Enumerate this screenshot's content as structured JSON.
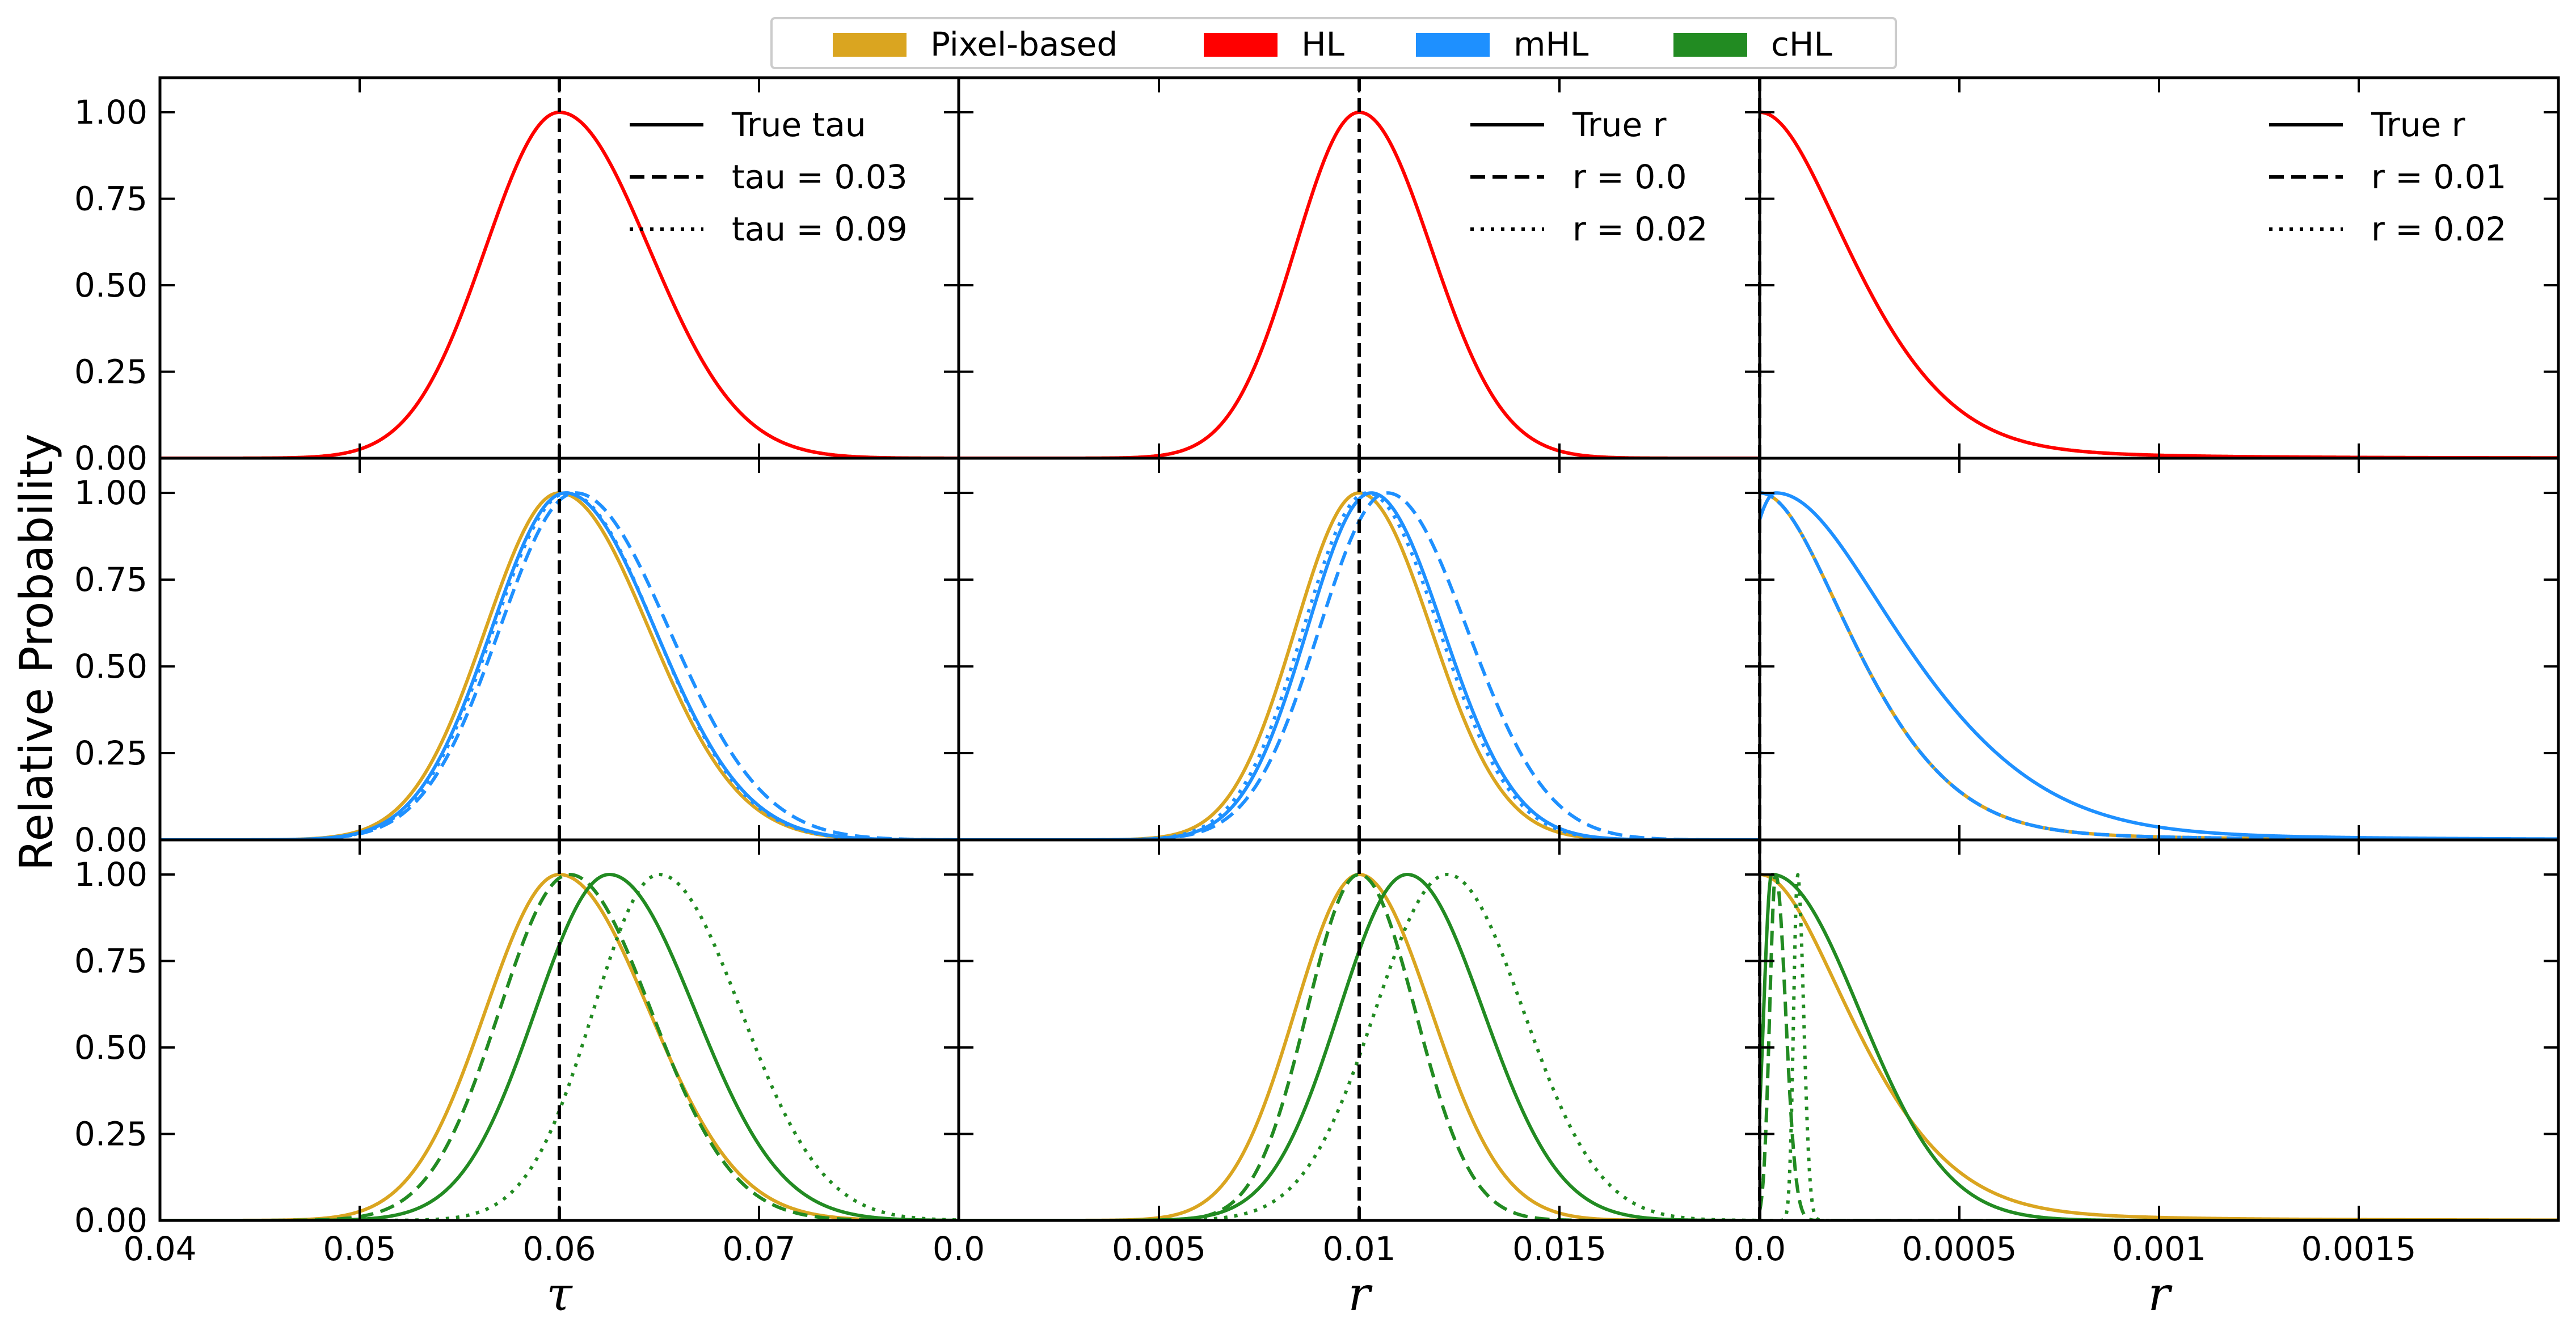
{
  "chart_data": {
    "type": "line",
    "ylabel": "Relative Probability",
    "color_legend": [
      {
        "label": "Pixel-based",
        "color": "#DAA520"
      },
      {
        "label": "HL",
        "color": "#FF0000"
      },
      {
        "label": "mHL",
        "color": "#1E90FF"
      },
      {
        "label": "cHL",
        "color": "#228B22"
      }
    ],
    "ylim": [
      0,
      1.1
    ],
    "yticks": [
      "0.00",
      "0.25",
      "0.50",
      "0.75",
      "1.00"
    ],
    "ytick_values": [
      0,
      0.25,
      0.5,
      0.75,
      1.0
    ],
    "true_line_style": "black dashed vertical",
    "columns": [
      {
        "xlabel": "τ",
        "xlim": [
          0.04,
          0.08
        ],
        "xticks": [
          "0.04",
          "0.05",
          "0.06",
          "0.07"
        ],
        "xtick_values": [
          0.04,
          0.05,
          0.06,
          0.07
        ],
        "true_value": 0.06,
        "legend": [
          {
            "label": "True tau",
            "style": "solid"
          },
          {
            "label": "tau = 0.03",
            "style": "dashed"
          },
          {
            "label": "tau = 0.09",
            "style": "dotted"
          }
        ],
        "pixel_curve": {
          "mu": 0.06,
          "sl": 0.0037,
          "sr": 0.0045
        },
        "rows": [
          [
            {
              "mu": 0.06,
              "sl": 0.0037,
              "sr": 0.0045,
              "style": "solid"
            }
          ],
          [
            {
              "mu": 0.0603,
              "sl": 0.0037,
              "sr": 0.0045,
              "style": "solid"
            },
            {
              "mu": 0.0608,
              "sl": 0.0038,
              "sr": 0.0047,
              "style": "dashed"
            },
            {
              "mu": 0.0604,
              "sl": 0.0037,
              "sr": 0.0044,
              "style": "dotted"
            }
          ],
          [
            {
              "mu": 0.0625,
              "sl": 0.0037,
              "sr": 0.0043,
              "style": "solid"
            },
            {
              "mu": 0.0605,
              "sl": 0.0035,
              "sr": 0.0041,
              "style": "dashed"
            },
            {
              "mu": 0.065,
              "sl": 0.0033,
              "sr": 0.0041,
              "style": "dotted"
            }
          ]
        ]
      },
      {
        "xlabel": "r",
        "xlim": [
          0.0,
          0.02
        ],
        "xticks": [
          "0.0",
          "0.005",
          "0.01",
          "0.015"
        ],
        "xtick_values": [
          0.0,
          0.005,
          0.01,
          0.015
        ],
        "true_value": 0.01,
        "legend": [
          {
            "label": "True r",
            "style": "solid"
          },
          {
            "label": "r = 0.0",
            "style": "dashed"
          },
          {
            "label": "r = 0.02",
            "style": "dotted"
          }
        ],
        "pixel_curve": {
          "mu": 0.01,
          "sl": 0.0016,
          "sr": 0.0018
        },
        "rows": [
          [
            {
              "mu": 0.01,
              "sl": 0.0016,
              "sr": 0.0018,
              "style": "solid"
            }
          ],
          [
            {
              "mu": 0.0103,
              "sl": 0.0016,
              "sr": 0.0018,
              "style": "solid"
            },
            {
              "mu": 0.0107,
              "sl": 0.0017,
              "sr": 0.002,
              "style": "dashed"
            },
            {
              "mu": 0.0102,
              "sl": 0.0016,
              "sr": 0.0018,
              "style": "dotted"
            }
          ],
          [
            {
              "mu": 0.0112,
              "sl": 0.0017,
              "sr": 0.0019,
              "style": "solid"
            },
            {
              "mu": 0.01,
              "sl": 0.0013,
              "sr": 0.0014,
              "style": "dashed"
            },
            {
              "mu": 0.0122,
              "sl": 0.0018,
              "sr": 0.0019,
              "style": "dotted"
            }
          ]
        ]
      },
      {
        "xlabel": "r",
        "xlim": [
          0.0,
          0.002
        ],
        "xticks": [
          "0.0",
          "0.0005",
          "0.001",
          "0.0015"
        ],
        "xtick_values": [
          0.0,
          0.0005,
          0.001,
          0.0015
        ],
        "true_value": 0.0,
        "legend": [
          {
            "label": "True r",
            "style": "solid"
          },
          {
            "label": "r = 0.01",
            "style": "dashed"
          },
          {
            "label": "r = 0.02",
            "style": "dotted"
          }
        ],
        "pixel_curve": {
          "mu": 0.0,
          "sl": 0.0001,
          "sr": 0.00026,
          "tail": 0.0003
        },
        "rows": [
          [
            {
              "mu": 0.0,
              "sl": 0.0001,
              "sr": 0.00026,
              "tail": 0.0003,
              "style": "solid"
            }
          ],
          [
            {
              "mu": 4e-05,
              "sl": 0.0001,
              "sr": 0.00036,
              "tail": 0.0004,
              "style": "solid"
            },
            {
              "mu": 0.0,
              "sl": 0.0001,
              "sr": 0.00026,
              "tail": 0.0003,
              "style": "dashed"
            },
            {
              "mu": 0.0,
              "sl": 0.0001,
              "sr": 0.00026,
              "tail": 0.0003,
              "style": "dotted"
            }
          ],
          [
            {
              "mu": 3e-05,
              "sl": 2e-05,
              "sr": 0.00022,
              "style": "solid"
            },
            {
              "mu": 4e-05,
              "sl": 1.5e-05,
              "sr": 2.5e-05,
              "style": "dashed"
            },
            {
              "mu": 9.5e-05,
              "sl": 1e-05,
              "sr": 1.5e-05,
              "style": "dotted"
            }
          ]
        ]
      }
    ],
    "row_family": [
      "HL",
      "mHL",
      "cHL"
    ]
  }
}
